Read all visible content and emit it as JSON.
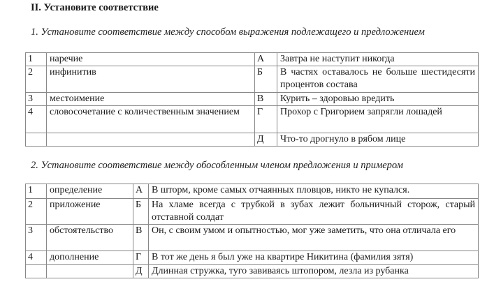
{
  "heading": "II. Установите соответствие",
  "task1": {
    "title": "1. Установите соответствие между способом выражения подлежащего и предложением",
    "rows": [
      {
        "num": "1",
        "left": "наречие",
        "letter": "А",
        "right": "Завтра не наступит никогда"
      },
      {
        "num": "2",
        "left": "инфинитив",
        "letter": "Б",
        "right": "В частях оставалось не больше шестидесяти процентов состава"
      },
      {
        "num": "3",
        "left": "местоимение",
        "letter": "В",
        "right": "Курить – здоровью вредить"
      },
      {
        "num": "4",
        "left": "словосочетание с количественным значением",
        "letter": "Г",
        "right": "Прохор с Григорием запрягли лошадей"
      },
      {
        "num": "",
        "left": "",
        "letter": "Д",
        "right": "Что-то дрогнуло в рябом лице"
      }
    ]
  },
  "task2": {
    "title": "2. Установите соответствие между обособленным членом предложения и примером",
    "rows": [
      {
        "num": "1",
        "left": "определение",
        "letter": "А",
        "right": "В шторм, кроме самых отчаянных пловцов, никто не купался."
      },
      {
        "num": "2",
        "left": "приложение",
        "letter": "Б",
        "right": "На хламе всегда с трубкой в зубах лежит больничный сторож, старый отставной солдат"
      },
      {
        "num": "3",
        "left": "обстоятельство",
        "letter": "В",
        "right": "Он, с своим умом и опытностью, мог уже заметить, что она отличала его"
      },
      {
        "num": "4",
        "left": "дополнение",
        "letter": "Г",
        "right": "В тот же день я был уже на квартире Никитина (фамилия зятя)"
      },
      {
        "num": "",
        "left": "",
        "letter": "Д",
        "right": "Длинная стружка, туго завиваясь штопором, лезла из рубанка"
      }
    ]
  }
}
